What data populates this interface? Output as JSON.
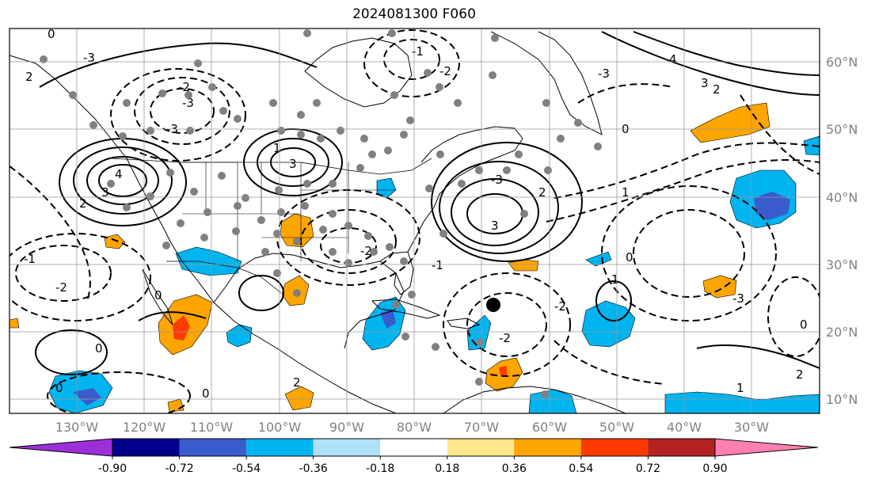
{
  "title": "2024081300 F060",
  "map": {
    "lon_ticks": [
      "130°W",
      "120°W",
      "110°W",
      "100°W",
      "90°W",
      "80°W",
      "70°W",
      "60°W",
      "50°W",
      "40°W",
      "30°W"
    ],
    "lat_ticks": [
      "60°N",
      "50°N",
      "40°N",
      "30°N",
      "20°N",
      "10°N"
    ],
    "lon_range": [
      -135,
      -15
    ],
    "lat_range": [
      8,
      65
    ],
    "contour_labels": [
      "0",
      "-1",
      "-2",
      "-3",
      "1",
      "2",
      "3",
      "4"
    ]
  },
  "colorbar": {
    "boundaries": [
      "-0.90",
      "-0.72",
      "-0.54",
      "-0.36",
      "-0.18",
      "0.18",
      "0.36",
      "0.54",
      "0.72",
      "0.90"
    ],
    "colors": [
      "#9b30d9",
      "#00008b",
      "#3a5bcc",
      "#00b4f0",
      "#aee0fa",
      "#ffffff",
      "#fee68a",
      "#fea500",
      "#fd3a00",
      "#b22222",
      "#ff80b0"
    ]
  }
}
